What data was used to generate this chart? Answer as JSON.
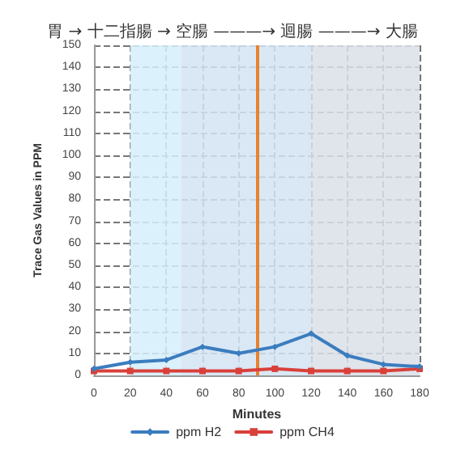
{
  "chart_data": {
    "type": "line",
    "title": "胃 → 十二指腸 → 空腸 ———→ 迴腸 ———→ 大腸",
    "xlabel": "Minutes",
    "ylabel": "Trace Gas Values in PPM",
    "x": [
      0,
      20,
      40,
      60,
      80,
      100,
      120,
      140,
      160,
      180
    ],
    "series": [
      {
        "name": "ppm H2",
        "color": "#3b7dbf",
        "marker": "diamond",
        "values": [
          3,
          6,
          7,
          13,
          10,
          13,
          19,
          9,
          5,
          4
        ]
      },
      {
        "name": "ppm CH4",
        "color": "#d9403a",
        "marker": "square",
        "values": [
          2,
          2,
          2,
          2,
          2,
          3,
          2,
          2,
          2,
          3
        ]
      }
    ],
    "xlim": [
      0,
      180
    ],
    "xticks": [
      0,
      20,
      40,
      60,
      80,
      100,
      120,
      140,
      160,
      180
    ],
    "ylim": [
      0,
      150
    ],
    "yticks": [
      0,
      10,
      20,
      30,
      40,
      50,
      60,
      70,
      80,
      90,
      100,
      110,
      120,
      130,
      140,
      150
    ],
    "bands": [
      {
        "axis": "x",
        "from": 20,
        "to": 48,
        "color": "#d5eefa"
      },
      {
        "axis": "x",
        "from": 48,
        "to": 120,
        "color": "#d3e4f4"
      },
      {
        "axis": "x",
        "from": 120,
        "to": 180,
        "color": "#dadfe8"
      }
    ],
    "ref_lines": [
      {
        "axis": "x",
        "value": 90,
        "color": "#e8822e"
      }
    ],
    "grid": true,
    "legend": "bottom"
  }
}
